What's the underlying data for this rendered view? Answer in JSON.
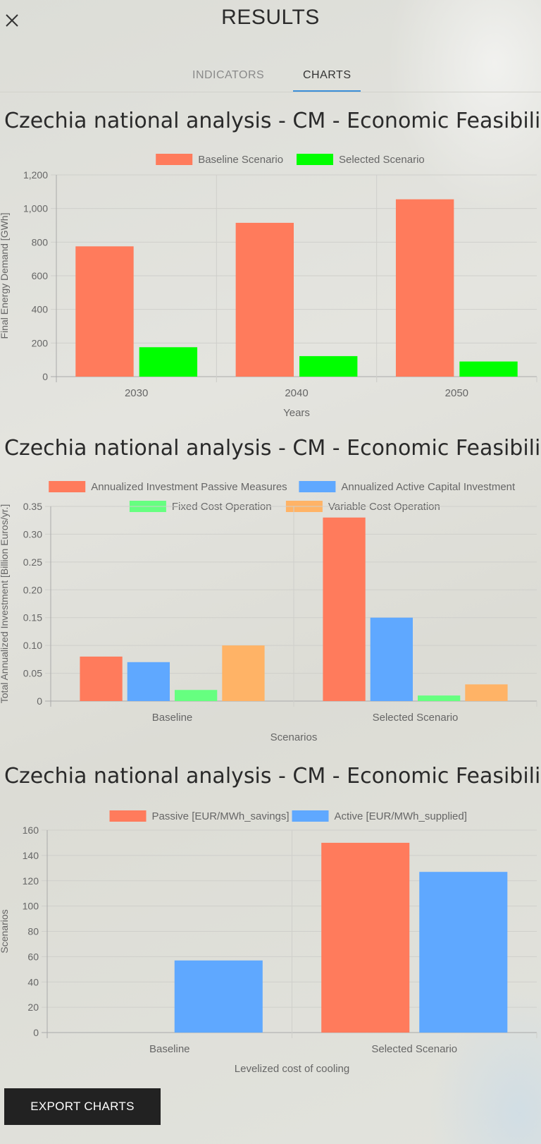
{
  "header": {
    "title": "RESULTS",
    "close_icon": "close-icon"
  },
  "tabs": [
    {
      "label": "INDICATORS",
      "active": false
    },
    {
      "label": "CHARTS",
      "active": true
    }
  ],
  "accent_color": "#3b8ed8",
  "sections": [
    {
      "title": "Czechia national analysis - CM - Economic Feasibility"
    },
    {
      "title": "Czechia national analysis - CM - Economic Feasibility"
    },
    {
      "title": "Czechia national analysis - CM - Economic Feasibility"
    }
  ],
  "chart_data": [
    {
      "type": "bar",
      "categories": [
        "2030",
        "2040",
        "2050"
      ],
      "series": [
        {
          "name": "Baseline Scenario",
          "color": "#ff7b5c",
          "values": [
            775,
            915,
            1055
          ]
        },
        {
          "name": "Selected Scenario",
          "color": "#00ff00",
          "values": [
            175,
            122,
            90
          ]
        }
      ],
      "xlabel": "Years",
      "ylabel": "Final Energy Demand [GWh]",
      "ylim": [
        0,
        1200
      ],
      "yticks": [
        "0",
        "200",
        "400",
        "600",
        "800",
        "1,000",
        "1,200"
      ],
      "legend": "top",
      "grid": true
    },
    {
      "type": "bar",
      "categories": [
        "Baseline",
        "Selected Scenario"
      ],
      "series": [
        {
          "name": "Annualized Investment Passive Measures",
          "color": "#ff7b5c",
          "values": [
            0.08,
            0.33
          ]
        },
        {
          "name": "Annualized Active Capital Investment",
          "color": "#5fa8ff",
          "values": [
            0.07,
            0.15
          ]
        },
        {
          "name": "Fixed Cost Operation",
          "color": "#66ff80",
          "values": [
            0.02,
            0.01
          ]
        },
        {
          "name": "Variable Cost Operation",
          "color": "#ffb366",
          "values": [
            0.1,
            0.03
          ]
        }
      ],
      "xlabel": "Scenarios",
      "ylabel": "Total Annualized Investment [Billion Euros/yr.]",
      "ylim": [
        0,
        0.35
      ],
      "yticks": [
        "0",
        "0.05",
        "0.10",
        "0.15",
        "0.20",
        "0.25",
        "0.30",
        "0.35"
      ],
      "legend": "top",
      "grid": true
    },
    {
      "type": "bar",
      "categories": [
        "Baseline",
        "Selected Scenario"
      ],
      "series": [
        {
          "name": "Passive [EUR/MWh_savings]",
          "color": "#ff7b5c",
          "values": [
            0,
            150
          ]
        },
        {
          "name": "Active [EUR/MWh_supplied]",
          "color": "#5fa8ff",
          "values": [
            57,
            127
          ]
        }
      ],
      "xlabel": "Levelized cost of cooling",
      "ylabel": "Scenarios",
      "ylim": [
        0,
        160
      ],
      "yticks": [
        "0",
        "20",
        "40",
        "60",
        "80",
        "100",
        "120",
        "140",
        "160"
      ],
      "legend": "top",
      "grid": true
    }
  ],
  "export": {
    "label": "EXPORT CHARTS"
  }
}
